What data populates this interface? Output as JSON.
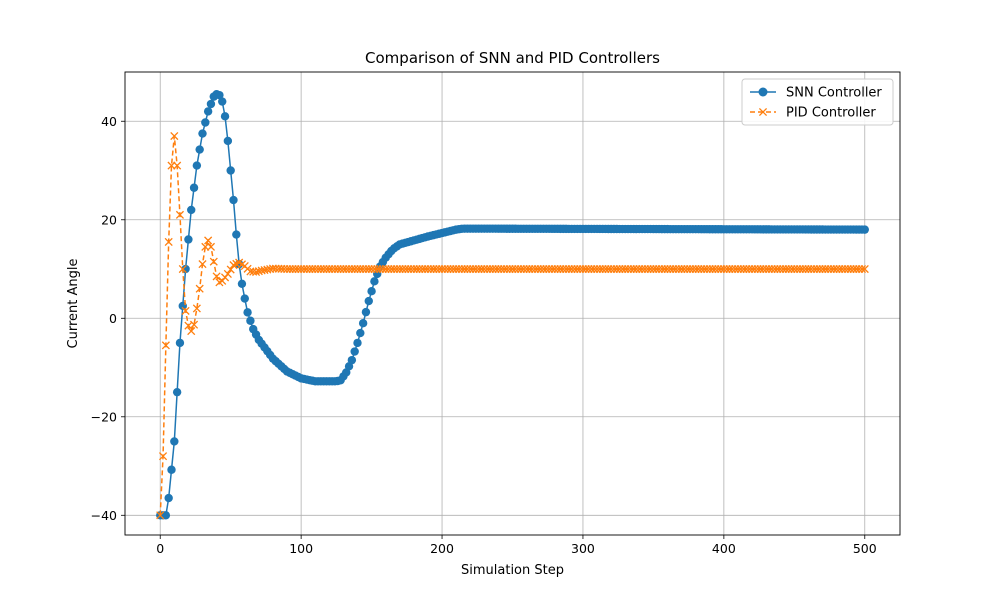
{
  "chart_data": {
    "type": "line",
    "title": "Comparison of SNN and PID Controllers",
    "xlabel": "Simulation Step",
    "ylabel": "Current Angle",
    "xlim": [
      -25,
      525
    ],
    "ylim": [
      -44,
      50
    ],
    "xticks": [
      0,
      100,
      200,
      300,
      400,
      500
    ],
    "yticks": [
      -40,
      -20,
      0,
      20,
      40
    ],
    "grid": true,
    "legend_position": "top-right",
    "series": [
      {
        "name": "SNN Controller",
        "color": "#1f77b4",
        "marker": "circle",
        "line_style": "solid",
        "step": 2,
        "keypoints": [
          [
            0,
            -40
          ],
          [
            4,
            -40
          ],
          [
            6,
            -36.5
          ],
          [
            10,
            -25
          ],
          [
            14,
            -5
          ],
          [
            18,
            10
          ],
          [
            22,
            22
          ],
          [
            26,
            31
          ],
          [
            30,
            37.5
          ],
          [
            34,
            42
          ],
          [
            38,
            45
          ],
          [
            40,
            45.5
          ],
          [
            42,
            45.3
          ],
          [
            44,
            44
          ],
          [
            46,
            41
          ],
          [
            48,
            36
          ],
          [
            50,
            30
          ],
          [
            52,
            24
          ],
          [
            54,
            17
          ],
          [
            56,
            11
          ],
          [
            58,
            7
          ],
          [
            60,
            4
          ],
          [
            62,
            1.2
          ],
          [
            66,
            -2.2
          ],
          [
            70,
            -4.4
          ],
          [
            80,
            -8.2
          ],
          [
            90,
            -10.8
          ],
          [
            100,
            -12.2
          ],
          [
            110,
            -12.8
          ],
          [
            120,
            -12.8
          ],
          [
            125,
            -12.8
          ],
          [
            128,
            -12.6
          ],
          [
            132,
            -11
          ],
          [
            136,
            -8.5
          ],
          [
            140,
            -5
          ],
          [
            144,
            -1
          ],
          [
            148,
            3.5
          ],
          [
            152,
            7.5
          ],
          [
            156,
            10.5
          ],
          [
            160,
            12.3
          ],
          [
            165,
            14
          ],
          [
            170,
            15
          ],
          [
            180,
            15.8
          ],
          [
            190,
            16.6
          ],
          [
            200,
            17.3
          ],
          [
            210,
            18
          ],
          [
            215,
            18.2
          ],
          [
            500,
            18
          ]
        ]
      },
      {
        "name": "PID Controller",
        "color": "#ff7f0e",
        "marker": "x",
        "line_style": "dashed",
        "step": 2,
        "keypoints": [
          [
            0,
            -40
          ],
          [
            2,
            -28
          ],
          [
            3,
            -17
          ],
          [
            4,
            -5.5
          ],
          [
            5,
            5.5
          ],
          [
            6,
            15.5
          ],
          [
            7,
            24
          ],
          [
            8,
            31
          ],
          [
            9,
            35.5
          ],
          [
            10,
            37
          ],
          [
            11,
            35
          ],
          [
            12,
            31
          ],
          [
            13,
            26
          ],
          [
            14,
            21
          ],
          [
            15,
            15.5
          ],
          [
            16,
            10
          ],
          [
            17,
            5.5
          ],
          [
            18,
            1.5
          ],
          [
            20,
            -1.5
          ],
          [
            22,
            -2.6
          ],
          [
            24,
            -1.3
          ],
          [
            26,
            2
          ],
          [
            28,
            6
          ],
          [
            30,
            11
          ],
          [
            32,
            14.5
          ],
          [
            34,
            15.8
          ],
          [
            36,
            14.5
          ],
          [
            38,
            11.5
          ],
          [
            40,
            8.5
          ],
          [
            42,
            7.3
          ],
          [
            44,
            7.6
          ],
          [
            48,
            9
          ],
          [
            52,
            10.8
          ],
          [
            56,
            11.3
          ],
          [
            60,
            10.6
          ],
          [
            64,
            9.5
          ],
          [
            68,
            9.4
          ],
          [
            72,
            9.7
          ],
          [
            80,
            10.1
          ],
          [
            90,
            10
          ],
          [
            500,
            10
          ]
        ]
      }
    ]
  }
}
